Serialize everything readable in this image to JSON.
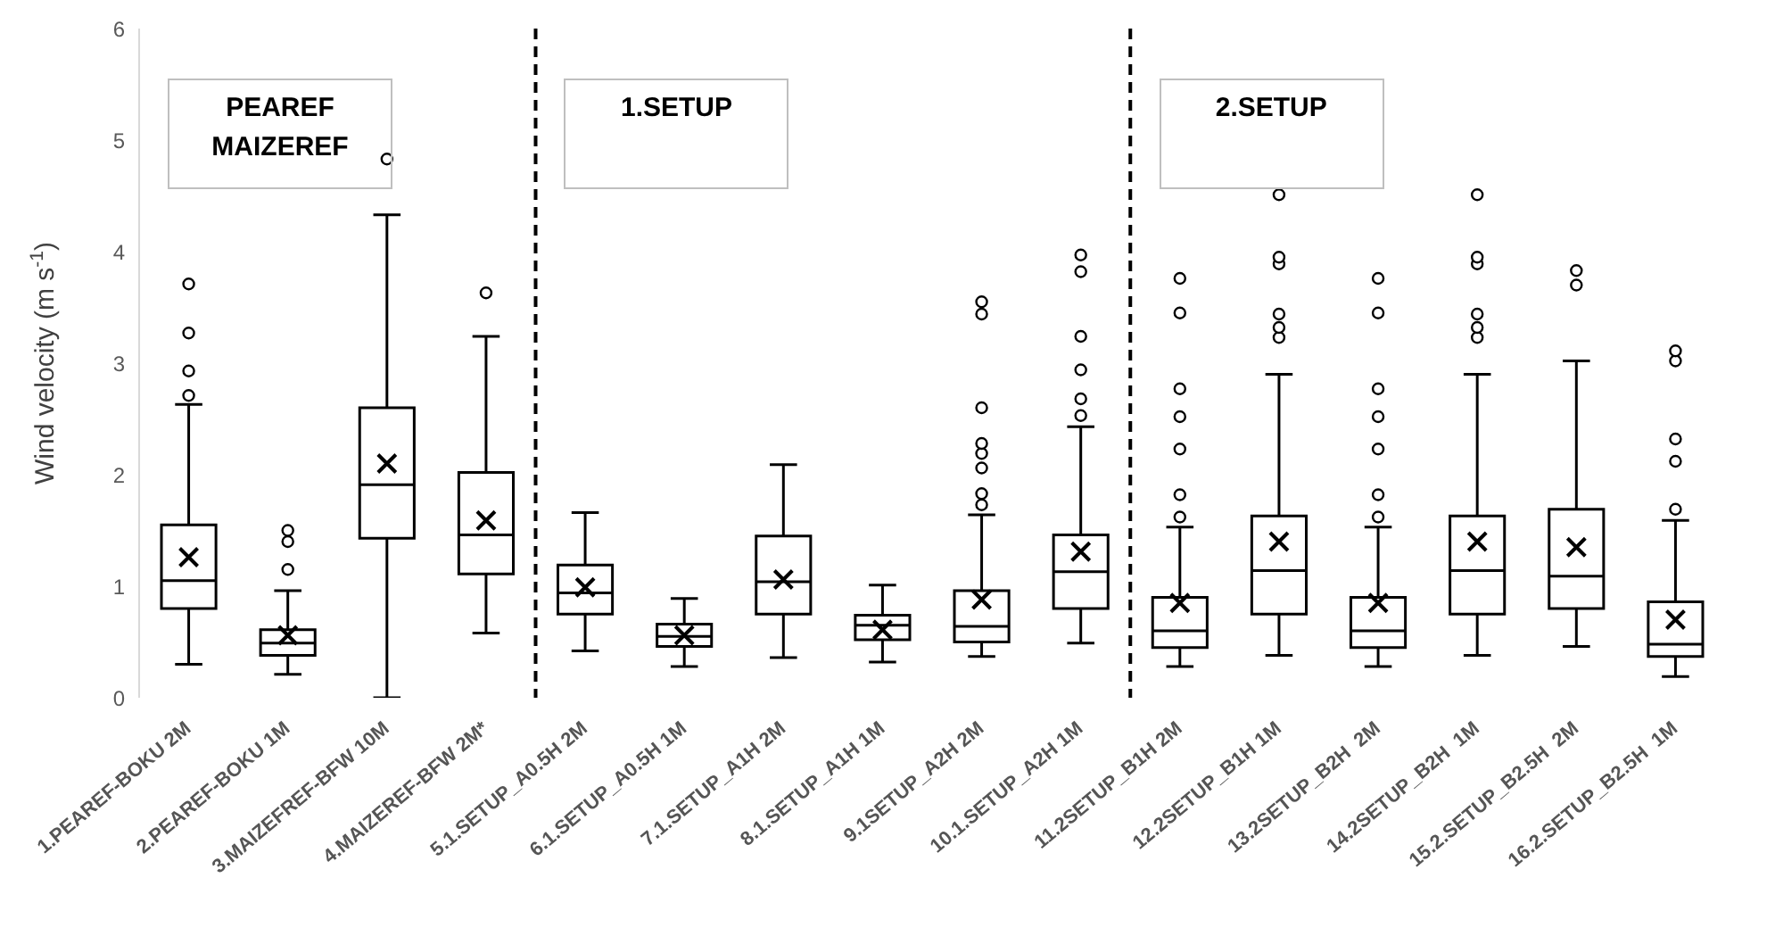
{
  "chart_data": {
    "type": "box",
    "ylabel": "Wind velocity (m s$^{-1}$)",
    "categories": [
      "1.PEAREF-BOKU 2M",
      "2.PEAREF-BOKU 1M",
      "3.MAIZEFREF-BFW 10M",
      "4.MAIZEREF-BFW 2M*",
      "5.1.SETUP_A0.5H 2M",
      "6.1.SETUP_A0.5H 1M",
      "7.1.SETUP_A1H 2M",
      "8.1.SETUP_A1H 1M",
      "9.1SETUP_A2H 2M",
      "10.1.SETUP_A2H 1M",
      "11.2SETUP_B1H 2M",
      "12.2SETUP_B1H 1M",
      "13.2SETUP_B2H  2M",
      "14.2SETUP_B2H  1M",
      "15.2.SETUP_B2.5H  2M",
      "16.2.SETUP_B2.5H  1M"
    ],
    "ylim": [
      0,
      6
    ],
    "yticks": [
      0,
      1,
      2,
      3,
      4,
      5,
      6
    ],
    "color": "#ffffff",
    "annotations": [
      "PEAREF\nMAIZEREF",
      "1.SETUP",
      "2.SETUP"
    ],
    "boxes": [
      {
        "low": 0.3,
        "q1": 0.8,
        "median": 1.05,
        "q3": 1.55,
        "high": 2.63,
        "mean": 1.26,
        "outliers": [
          2.71,
          2.93,
          3.27,
          3.71
        ]
      },
      {
        "low": 0.21,
        "q1": 0.38,
        "median": 0.49,
        "q3": 0.61,
        "high": 0.96,
        "mean": 0.56,
        "outliers": [
          1.15,
          1.4,
          1.5
        ]
      },
      {
        "low": 0,
        "q1": 1.43,
        "median": 1.91,
        "q3": 2.6,
        "high": 4.33,
        "mean": 2.1,
        "outliers": [
          4.83
        ]
      },
      {
        "low": 0.58,
        "q1": 1.11,
        "median": 1.46,
        "q3": 2.02,
        "high": 3.24,
        "mean": 1.59,
        "outliers": [
          3.63
        ]
      },
      {
        "low": 0.42,
        "q1": 0.75,
        "median": 0.94,
        "q3": 1.19,
        "high": 1.66,
        "mean": 0.99
      },
      {
        "low": 0.28,
        "q1": 0.46,
        "median": 0.55,
        "q3": 0.66,
        "high": 0.89,
        "mean": 0.56
      },
      {
        "low": 0.36,
        "q1": 0.75,
        "median": 1.04,
        "q3": 1.45,
        "high": 2.09,
        "mean": 1.06
      },
      {
        "low": 0.32,
        "q1": 0.52,
        "median": 0.65,
        "q3": 0.74,
        "high": 1.01,
        "mean": 0.61
      },
      {
        "low": 0.37,
        "q1": 0.5,
        "median": 0.64,
        "q3": 0.96,
        "high": 1.64,
        "mean": 0.88,
        "outliers": [
          1.73,
          1.83,
          2.06,
          2.19,
          2.28,
          2.6,
          3.44,
          3.55
        ]
      },
      {
        "low": 0.49,
        "q1": 0.8,
        "median": 1.13,
        "q3": 1.46,
        "high": 2.43,
        "mean": 1.31,
        "outliers": [
          2.53,
          2.68,
          2.94,
          3.24,
          3.82,
          3.97
        ]
      },
      {
        "low": 0.28,
        "q1": 0.45,
        "median": 0.6,
        "q3": 0.9,
        "high": 1.53,
        "mean": 0.85,
        "outliers": [
          1.62,
          1.82,
          2.23,
          2.52,
          2.77,
          3.45,
          3.76
        ]
      },
      {
        "low": 0.38,
        "q1": 0.75,
        "median": 1.14,
        "q3": 1.63,
        "high": 2.9,
        "mean": 1.4,
        "outliers": [
          3.23,
          3.32,
          3.44,
          3.89,
          3.95,
          4.51
        ]
      },
      {
        "low": 0.28,
        "q1": 0.45,
        "median": 0.6,
        "q3": 0.9,
        "high": 1.53,
        "mean": 0.85,
        "outliers": [
          1.62,
          1.82,
          2.23,
          2.52,
          2.77,
          3.45,
          3.76
        ]
      },
      {
        "low": 0.38,
        "q1": 0.75,
        "median": 1.14,
        "q3": 1.63,
        "high": 2.9,
        "mean": 1.4,
        "outliers": [
          3.23,
          3.32,
          3.44,
          3.89,
          3.95,
          4.51
        ]
      },
      {
        "low": 0.46,
        "q1": 0.8,
        "median": 1.09,
        "q3": 1.69,
        "high": 3.02,
        "mean": 1.35,
        "outliers": [
          3.7,
          3.83
        ]
      },
      {
        "low": 0.19,
        "q1": 0.37,
        "median": 0.48,
        "q3": 0.86,
        "high": 1.59,
        "mean": 0.7,
        "outliers": [
          1.69,
          2.12,
          2.32,
          3.02,
          3.11
        ]
      }
    ]
  }
}
